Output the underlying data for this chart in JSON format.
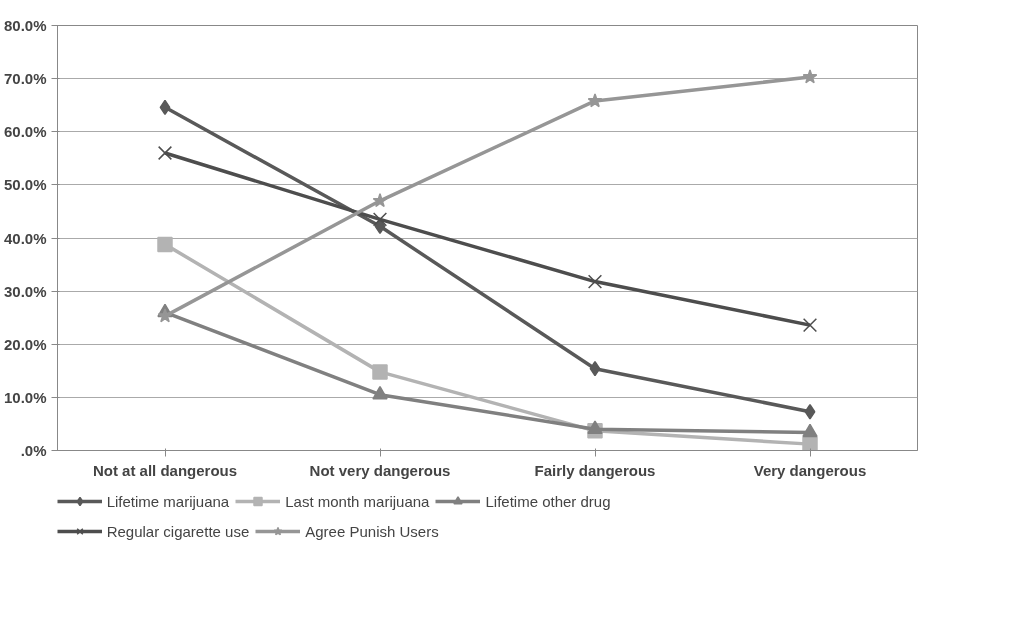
{
  "chart_data": {
    "type": "line",
    "categories": [
      "Not at all dangerous",
      "Not very dangerous",
      "Fairly dangerous",
      "Very dangerous"
    ],
    "series": [
      {
        "name": "Lifetime marijuana",
        "color": "#595959",
        "marker": "diamond",
        "values": [
          64.6,
          42.2,
          15.4,
          7.3
        ]
      },
      {
        "name": "Last month marijuana",
        "color": "#b3b3b3",
        "marker": "square",
        "values": [
          38.8,
          14.8,
          3.7,
          1.2
        ]
      },
      {
        "name": "Lifetime other drug",
        "color": "#808080",
        "marker": "triangle",
        "values": [
          26.0,
          10.5,
          4.0,
          3.4
        ]
      },
      {
        "name": "Regular cigarette use",
        "color": "#4d4d4d",
        "marker": "cross",
        "values": [
          56.0,
          43.5,
          31.8,
          23.6
        ]
      },
      {
        "name": "Agree Punish Users",
        "color": "#969696",
        "marker": "star",
        "values": [
          25.3,
          47.0,
          65.8,
          70.3
        ]
      }
    ],
    "ylim": [
      0,
      80
    ],
    "yticks": [
      {
        "value": 0,
        "label": ".0%"
      },
      {
        "value": 10,
        "label": "10.0%"
      },
      {
        "value": 20,
        "label": "20.0%"
      },
      {
        "value": 30,
        "label": "30.0%"
      },
      {
        "value": 40,
        "label": "40.0%"
      },
      {
        "value": 50,
        "label": "50.0%"
      },
      {
        "value": 60,
        "label": "60.0%"
      },
      {
        "value": 70,
        "label": "70.0%"
      },
      {
        "value": 80,
        "label": "80.0%"
      }
    ],
    "grid": "y",
    "legend": "bottom",
    "line_style": "solid"
  }
}
